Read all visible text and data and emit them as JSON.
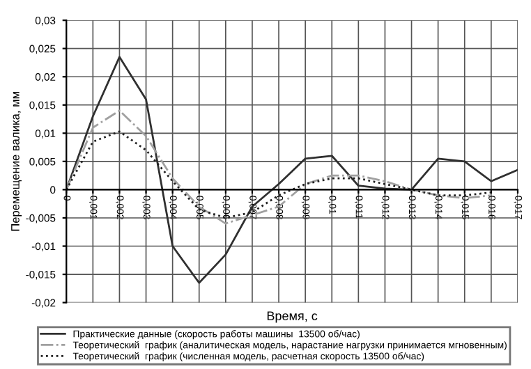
{
  "chart_data": {
    "type": "line",
    "xlabel": "Время, с",
    "ylabel": "Перемещение валика, мм",
    "x": [
      0,
      0.001,
      0.002,
      0.003,
      0.004,
      0.005,
      0.006,
      0.007,
      0.008,
      0.009,
      0.01,
      0.011,
      0.012,
      0.013,
      0.014,
      0.015,
      0.016,
      0.017
    ],
    "series": [
      {
        "name": "Практические данные (скорость работы машины  13500 об/час)",
        "color": "#303030",
        "line_style": "solid",
        "values": [
          0,
          0.013,
          0.0235,
          0.016,
          -0.01,
          -0.0165,
          -0.0115,
          -0.003,
          0.001,
          0.0055,
          0.006,
          0.0007,
          0.0002,
          0,
          0.0055,
          0.005,
          0.0015,
          0.0035
        ]
      },
      {
        "name": "Теоретический  график (аналитическая модель, нарастание нагрузки принимается мгновенным)",
        "color": "#a0a0a0",
        "line_style": "dashdot",
        "values": [
          0,
          0.011,
          0.014,
          0.0095,
          0.002,
          -0.003,
          -0.006,
          -0.0045,
          -0.003,
          0.001,
          0.0025,
          0.0025,
          0.0015,
          0,
          -0.001,
          -0.0015,
          -0.001,
          null
        ]
      },
      {
        "name": "Теоретический  график (численная модель, расчетная скорость 13500 об/час)",
        "color": "#202020",
        "line_style": "dotted",
        "values": [
          0,
          0.0085,
          0.0103,
          0.007,
          0.0015,
          -0.0035,
          -0.005,
          -0.004,
          -0.001,
          0.001,
          0.002,
          0.002,
          0.001,
          0,
          -0.001,
          -0.001,
          -0.0005,
          null
        ]
      }
    ],
    "xlim": [
      0,
      0.017
    ],
    "xticks": [
      {
        "value": 0,
        "label": "0"
      },
      {
        "value": 0.001,
        "label": "0,001"
      },
      {
        "value": 0.002,
        "label": "0,002"
      },
      {
        "value": 0.003,
        "label": "0,003"
      },
      {
        "value": 0.004,
        "label": "0,004"
      },
      {
        "value": 0.005,
        "label": "0,005"
      },
      {
        "value": 0.006,
        "label": "0,006"
      },
      {
        "value": 0.007,
        "label": "0,007"
      },
      {
        "value": 0.008,
        "label": "0,008"
      },
      {
        "value": 0.009,
        "label": "0,009"
      },
      {
        "value": 0.01,
        "label": "0,01"
      },
      {
        "value": 0.011,
        "label": "0,011"
      },
      {
        "value": 0.012,
        "label": "0,012"
      },
      {
        "value": 0.013,
        "label": "0,013"
      },
      {
        "value": 0.014,
        "label": "0,014"
      },
      {
        "value": 0.015,
        "label": "0,015"
      },
      {
        "value": 0.016,
        "label": "0,016"
      },
      {
        "value": 0.017,
        "label": "0,017"
      }
    ],
    "ylim": [
      -0.02,
      0.03
    ],
    "yticks": [
      {
        "value": -0.02,
        "label": "-0,02"
      },
      {
        "value": -0.015,
        "label": "-0,015"
      },
      {
        "value": -0.01,
        "label": "-0,01"
      },
      {
        "value": -0.005,
        "label": "-0,005"
      },
      0,
      {
        "value": 0.005,
        "label": "0,005"
      },
      {
        "value": 0.01,
        "label": "0,01"
      },
      {
        "value": 0.015,
        "label": "0,015"
      },
      {
        "value": 0.02,
        "label": "0,02"
      },
      {
        "value": 0.025,
        "label": "0,025"
      },
      {
        "value": 0.03,
        "label": "0,03"
      }
    ],
    "grid": true,
    "legend": "bottom",
    "marker": "none"
  }
}
